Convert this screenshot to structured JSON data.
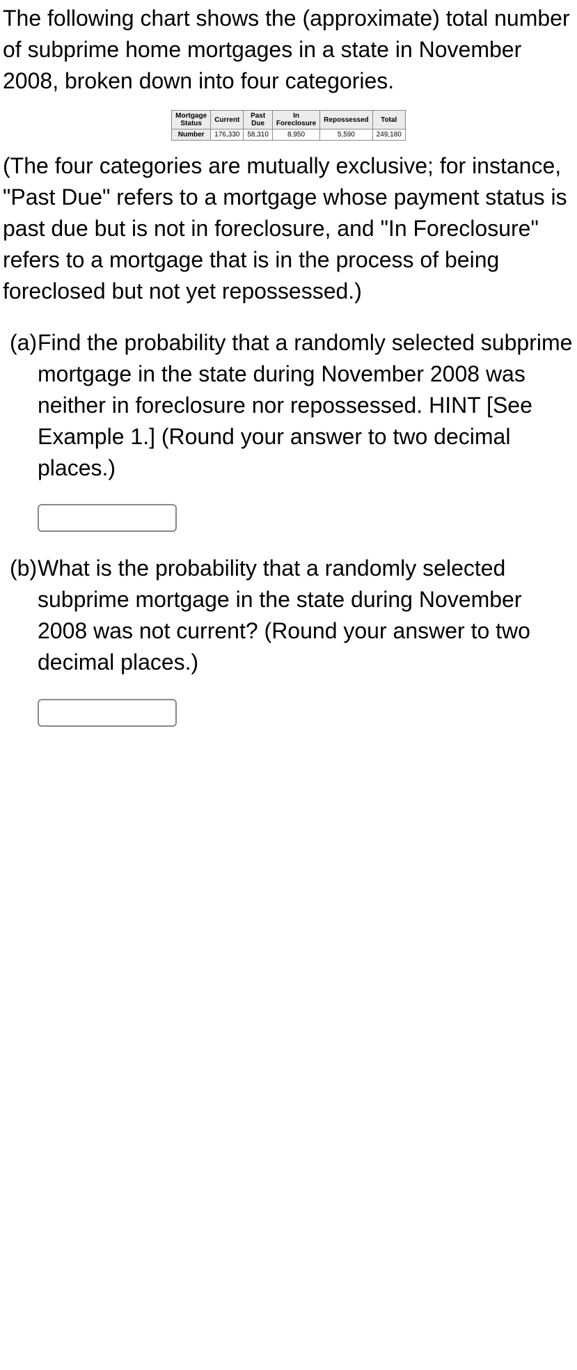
{
  "intro": "The following chart shows the (approximate) total number of subprime home mortgages in a state in November 2008, broken down into four categories.",
  "table": {
    "header_row_label": "Mortgage Status",
    "columns": [
      "Current",
      "Past Due",
      "In Foreclosure",
      "Repossessed",
      "Total"
    ],
    "data_row_label": "Number",
    "values": [
      "176,330",
      "58,310",
      "8,950",
      "5,590",
      "249,180"
    ],
    "header_bg": "#ececec",
    "border_color": "#888888",
    "font_size": 10
  },
  "explain": "(The four categories are mutually exclusive; for instance, \"Past Due\" refers to a mortgage whose payment status is past due but is not in foreclosure, and \"In Foreclosure\" refers to a mortgage that is in the process of being foreclosed but not yet repossessed.)",
  "questions": {
    "a": {
      "label": "(a)",
      "text": "Find the probability that a randomly selected subprime mortgage in the state during November 2008 was neither in foreclosure nor repossessed. HINT [See Example 1.] (Round your answer to two decimal places.)"
    },
    "b": {
      "label": "(b)",
      "text": "What is the probability that a randomly selected subprime mortgage in the state during November 2008 was not current? (Round your answer to two decimal places.)"
    }
  }
}
